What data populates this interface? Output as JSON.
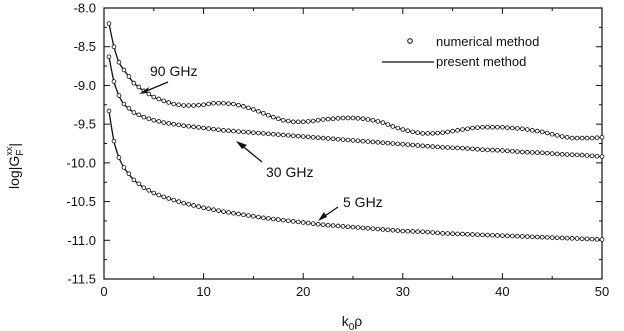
{
  "chart_data": {
    "type": "line",
    "xlabel": {
      "base": "k",
      "sub": "0",
      "rest": "ρ"
    },
    "ylabel": {
      "prefix": "log|G",
      "sub": "F",
      "sup": "xx",
      "suffix": "|"
    },
    "xlim": [
      0,
      50
    ],
    "ylim": [
      -11.5,
      -8.0
    ],
    "xticks": [
      0,
      10,
      20,
      30,
      40,
      50
    ],
    "yticks": [
      -8.0,
      -8.5,
      -9.0,
      -9.5,
      -10.0,
      -10.5,
      -11.0,
      -11.5
    ],
    "ytick_labels": [
      "-8.0",
      "-8.5",
      "-9.0",
      "-9.5",
      "-10.0",
      "-10.5",
      "-11.0",
      "-11.5"
    ],
    "grid": false,
    "legend": {
      "placement": "top-right",
      "entries": [
        {
          "label": "numerical method",
          "marker": "open-circle"
        },
        {
          "label": "present method",
          "marker": "line"
        }
      ]
    },
    "series": [
      {
        "name": "90 GHz",
        "x": [
          0.5,
          1,
          1.5,
          2,
          3,
          4,
          5,
          6,
          7,
          8,
          9,
          10,
          11,
          12,
          13,
          14,
          15,
          16,
          17,
          18,
          19,
          20,
          21,
          22,
          23,
          24,
          25,
          26,
          27,
          28,
          29,
          30,
          31,
          32,
          33,
          34,
          35,
          36,
          37,
          38,
          39,
          40,
          41,
          42,
          43,
          44,
          45,
          46,
          47,
          48,
          49,
          50
        ],
        "y": [
          -8.2,
          -8.5,
          -8.7,
          -8.8,
          -8.97,
          -9.07,
          -9.15,
          -9.2,
          -9.24,
          -9.26,
          -9.26,
          -9.25,
          -9.23,
          -9.23,
          -9.24,
          -9.27,
          -9.31,
          -9.36,
          -9.41,
          -9.45,
          -9.47,
          -9.47,
          -9.46,
          -9.44,
          -9.43,
          -9.42,
          -9.42,
          -9.43,
          -9.45,
          -9.48,
          -9.53,
          -9.57,
          -9.6,
          -9.62,
          -9.62,
          -9.61,
          -9.59,
          -9.57,
          -9.55,
          -9.54,
          -9.54,
          -9.54,
          -9.55,
          -9.56,
          -9.58,
          -9.6,
          -9.63,
          -9.66,
          -9.68,
          -9.68,
          -9.68,
          -9.67
        ]
      },
      {
        "name": "30 GHz",
        "x": [
          0.5,
          1,
          1.5,
          2,
          3,
          4,
          5,
          6,
          7,
          8,
          10,
          12,
          14,
          16,
          18,
          20,
          22,
          24,
          26,
          28,
          30,
          32,
          34,
          36,
          38,
          40,
          42,
          44,
          46,
          48,
          50
        ],
        "y": [
          -8.63,
          -8.95,
          -9.13,
          -9.24,
          -9.35,
          -9.41,
          -9.45,
          -9.48,
          -9.5,
          -9.52,
          -9.55,
          -9.58,
          -9.6,
          -9.62,
          -9.64,
          -9.66,
          -9.68,
          -9.7,
          -9.72,
          -9.74,
          -9.76,
          -9.78,
          -9.8,
          -9.81,
          -9.83,
          -9.84,
          -9.86,
          -9.87,
          -9.89,
          -9.9,
          -9.92
        ]
      },
      {
        "name": "5 GHz",
        "x": [
          0.5,
          1,
          1.5,
          2,
          3,
          4,
          5,
          6,
          7,
          8,
          10,
          12,
          14,
          16,
          18,
          20,
          22,
          24,
          26,
          28,
          30,
          32,
          34,
          36,
          38,
          40,
          42,
          44,
          46,
          48,
          50
        ],
        "y": [
          -9.33,
          -9.72,
          -9.93,
          -10.06,
          -10.22,
          -10.32,
          -10.39,
          -10.44,
          -10.48,
          -10.52,
          -10.58,
          -10.63,
          -10.67,
          -10.71,
          -10.74,
          -10.77,
          -10.8,
          -10.82,
          -10.84,
          -10.86,
          -10.88,
          -10.89,
          -10.91,
          -10.92,
          -10.93,
          -10.94,
          -10.95,
          -10.96,
          -10.97,
          -10.98,
          -10.99
        ]
      }
    ],
    "annotations": [
      {
        "text": "90 GHz",
        "series": "90 GHz"
      },
      {
        "text": "30 GHz",
        "series": "30 GHz"
      },
      {
        "text": "5 GHz",
        "series": "5 GHz"
      }
    ]
  }
}
